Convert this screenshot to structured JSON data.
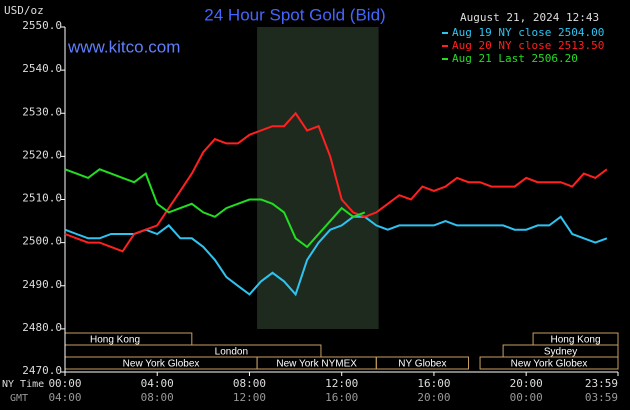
{
  "chart_data": {
    "type": "line",
    "title": "24 Hour Spot Gold (Bid)",
    "website": "www.kitco.com",
    "timestamp": "August 21, 2024 12:43",
    "y_label": "USD/oz",
    "x_row_labels": [
      "NY Time",
      "GMT"
    ],
    "x": [
      0,
      0.5,
      1,
      1.5,
      2,
      2.5,
      3,
      3.5,
      4,
      4.5,
      5,
      5.5,
      6,
      6.5,
      7,
      7.5,
      8,
      8.5,
      9,
      9.5,
      10,
      10.5,
      11,
      11.5,
      12,
      12.5,
      13,
      13.5,
      14,
      14.5,
      15,
      15.5,
      16,
      16.5,
      17,
      17.5,
      18,
      18.5,
      19,
      19.5,
      20,
      20.5,
      21,
      21.5,
      22,
      22.5,
      23,
      23.5
    ],
    "series": [
      {
        "name": "Aug 19 NY close 2504.00",
        "color": "#2ec4f2",
        "values": [
          2503,
          2502,
          2501,
          2501,
          2502,
          2502,
          2502,
          2503,
          2502,
          2504,
          2501,
          2501,
          2499,
          2496,
          2492,
          2490,
          2488,
          2491,
          2493,
          2491,
          2488,
          2496,
          2500,
          2503,
          2504,
          2506,
          2506,
          2504,
          2503,
          2504,
          2504,
          2504,
          2504,
          2505,
          2504,
          2504,
          2504,
          2504,
          2504,
          2503,
          2503,
          2504,
          2504,
          2506,
          2502,
          2501,
          2500,
          2501
        ]
      },
      {
        "name": "Aug 20 NY close 2513.50",
        "color": "#ff2020",
        "values": [
          2502,
          2501,
          2500,
          2500,
          2499,
          2498,
          2502,
          2503,
          2504,
          2508,
          2512,
          2516,
          2521,
          2524,
          2523,
          2523,
          2525,
          2526,
          2527,
          2527,
          2530,
          2526,
          2527,
          2520,
          2510,
          2507,
          2506,
          2507,
          2509,
          2511,
          2510,
          2513,
          2512,
          2513,
          2515,
          2514,
          2514,
          2513,
          2513,
          2513,
          2515,
          2514,
          2514,
          2514,
          2513,
          2516,
          2515,
          2517
        ]
      },
      {
        "name": "Aug 21 Last 2506.20",
        "color": "#22dd22",
        "values": [
          2517,
          2516,
          2515,
          2517,
          2516,
          2515,
          2514,
          2516,
          2509,
          2507,
          2508,
          2509,
          2507,
          2506,
          2508,
          2509,
          2510,
          2510,
          2509,
          2507,
          2501,
          2499,
          2502,
          2505,
          2508,
          2506,
          2507,
          null,
          null,
          null,
          null,
          null,
          null,
          null,
          null,
          null,
          null,
          null,
          null,
          null,
          null,
          null,
          null,
          null,
          null,
          null,
          null,
          null
        ]
      }
    ],
    "xlim": [
      0,
      23.983
    ],
    "xticks": [
      {
        "value": 0,
        "label": "00:00"
      },
      {
        "value": 4,
        "label": "04:00"
      },
      {
        "value": 8,
        "label": "08:00"
      },
      {
        "value": 12,
        "label": "12:00"
      },
      {
        "value": 16,
        "label": "16:00"
      },
      {
        "value": 20,
        "label": "20:00"
      },
      {
        "value": 23.983,
        "label": "23:59"
      }
    ],
    "gmt_ticklabels": [
      "04:00",
      "08:00",
      "12:00",
      "16:00",
      "20:00",
      "00:00",
      "03:59"
    ],
    "ylim": [
      2470,
      2550
    ],
    "yticks": [
      {
        "value": 2470,
        "label": "2470.0"
      },
      {
        "value": 2480,
        "label": "2480.0"
      },
      {
        "value": 2490,
        "label": "2490.0"
      },
      {
        "value": 2500,
        "label": "2500.0"
      },
      {
        "value": 2510,
        "label": "2510.0"
      },
      {
        "value": 2520,
        "label": "2520.0"
      },
      {
        "value": 2530,
        "label": "2530.0"
      },
      {
        "value": 2540,
        "label": "2540.0"
      },
      {
        "value": 2550,
        "label": "2550.0"
      }
    ],
    "sessions": [
      "Hong Kong",
      "Hong Kong",
      "London",
      "Sydney",
      "New York Globex",
      "New York NYMEX",
      "NY Globex",
      "New York Globex"
    ]
  }
}
